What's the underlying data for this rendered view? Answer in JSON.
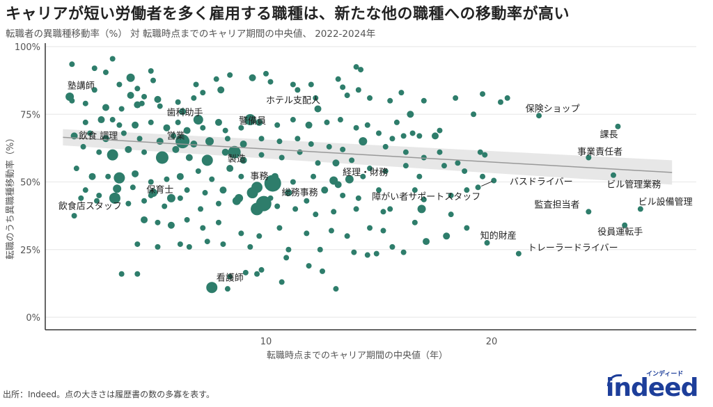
{
  "title": "キャリアが短い労働者を多く雇用する職種は、新たな他の職種への移動率が高い",
  "subtitle": "転職者の異職種移動率（%） 対 転職時点までのキャリア期間の中央値、 2022-2024年",
  "source": "出所：Indeed。点の大きさは履歴書の数の多寡を表す。",
  "logo": {
    "word": "indeed",
    "kana": "インディード",
    "color": "#1d3e9a"
  },
  "colors": {
    "point": "#2e7d6b",
    "trend": "#999999",
    "band": "#e3e3e3",
    "grid": "#e6e6e6",
    "axis": "#333333"
  },
  "chart_data": {
    "type": "scatter",
    "title": "キャリアが短い労働者を多く雇用する職種は、新たな他の職種への移動率が高い",
    "subtitle": "転職者の異職種移動率（%） 対 転職時点までのキャリア期間の中央値、 2022-2024年",
    "xlabel": "転職時点までのキャリア期間の中央値（年）",
    "ylabel": "転職のうち異職種移動率（%）",
    "x_ticks": [
      10,
      20
    ],
    "x_tick_labels": [
      "10",
      "20"
    ],
    "y_ticks": [
      0,
      25,
      50,
      75,
      100
    ],
    "y_tick_labels": [
      "0%",
      "25%",
      "50%",
      "75%",
      "100%"
    ],
    "xlim": [
      0.2,
      29.1
    ],
    "ylim": [
      -4,
      100
    ],
    "grid": true,
    "legend": "none",
    "size_encoding": "履歴書の数",
    "trendline": {
      "type": "linear",
      "x": [
        1,
        28
      ],
      "y": [
        66.5,
        53.5
      ],
      "ci_halfwidth": [
        3.0,
        4.5
      ]
    },
    "labeled_points": [
      {
        "label": "塾講師",
        "x": 1.3,
        "y": 81.5,
        "size": 6,
        "lx": 1.2,
        "ly": 84.5
      },
      {
        "label": "歯科助手",
        "x": 7.0,
        "y": 73.0,
        "size": 7,
        "lx": 5.6,
        "ly": 74.5
      },
      {
        "label": "飲食 調理",
        "x": 1.5,
        "y": 67.0,
        "size": 5,
        "lx": 1.7,
        "ly": 66.0
      },
      {
        "label": "営業",
        "x": 6.3,
        "y": 65.0,
        "size": 10,
        "lx": 5.6,
        "ly": 66.0
      },
      {
        "label": "警備員",
        "x": 9.3,
        "y": 73.0,
        "size": 8,
        "lx": 8.8,
        "ly": 71.5
      },
      {
        "label": "ホテル支配人",
        "x": 12.3,
        "y": 77.0,
        "size": 5,
        "lx": 10.0,
        "ly": 79.0
      },
      {
        "label": "製造",
        "x": 8.6,
        "y": 61.0,
        "size": 9,
        "lx": 8.3,
        "ly": 57.5
      },
      {
        "label": "事務",
        "x": 10.3,
        "y": 49.5,
        "size": 12,
        "lx": 9.3,
        "ly": 51.0
      },
      {
        "label": "総務事務",
        "x": 9.9,
        "y": 42.0,
        "size": 11,
        "lx": 10.7,
        "ly": 45.0
      },
      {
        "label": "経理・財務",
        "x": 13.0,
        "y": 50.5,
        "size": 6,
        "lx": 13.4,
        "ly": 52.5
      },
      {
        "label": "保育士",
        "x": 5.0,
        "y": 46.0,
        "size": 6,
        "lx": 4.7,
        "ly": 46.0
      },
      {
        "label": "飲食店スタッフ",
        "x": 1.5,
        "y": 37.5,
        "size": 4,
        "lx": 0.8,
        "ly": 40.0
      },
      {
        "label": "障がい者サポートスタッフ",
        "x": 17.0,
        "y": 43.5,
        "size": 4,
        "lx": 14.7,
        "ly": 43.5
      },
      {
        "label": "バスドライバー",
        "x": 20.1,
        "y": 50.5,
        "size": 4,
        "lx": 20.8,
        "ly": 49.0
      },
      {
        "label": "保険ショップ",
        "x": 22.1,
        "y": 74.5,
        "size": 4,
        "lx": 21.5,
        "ly": 76.0
      },
      {
        "label": "課長",
        "x": 25.6,
        "y": 70.5,
        "size": 4,
        "lx": 24.8,
        "ly": 66.5
      },
      {
        "label": "事業責任者",
        "x": 24.3,
        "y": 59.0,
        "size": 4,
        "lx": 23.8,
        "ly": 60.0
      },
      {
        "label": "ビル管理業務",
        "x": 25.4,
        "y": 52.5,
        "size": 4,
        "lx": 25.1,
        "ly": 48.0
      },
      {
        "label": "監査担当者",
        "x": 24.3,
        "y": 39.0,
        "size": 4,
        "lx": 21.9,
        "ly": 40.5
      },
      {
        "label": "ビル設備管理",
        "x": 26.6,
        "y": 40.0,
        "size": 4,
        "lx": 26.5,
        "ly": 41.5
      },
      {
        "label": "知的財産",
        "x": 19.8,
        "y": 27.5,
        "size": 4,
        "lx": 19.5,
        "ly": 29.0
      },
      {
        "label": "役員運転手",
        "x": 25.9,
        "y": 34.0,
        "size": 4,
        "lx": 24.7,
        "ly": 30.5
      },
      {
        "label": "トレーラードライバー",
        "x": 21.2,
        "y": 23.5,
        "size": 4,
        "lx": 21.6,
        "ly": 24.5
      },
      {
        "label": "看護師",
        "x": 7.6,
        "y": 11.0,
        "size": 8,
        "lx": 7.8,
        "ly": 13.5
      }
    ],
    "points": [
      [
        1.4,
        93.5,
        4
      ],
      [
        2.4,
        92,
        4
      ],
      [
        3.2,
        95.5,
        4
      ],
      [
        2.9,
        90.5,
        4
      ],
      [
        4.0,
        88.5,
        6
      ],
      [
        4.9,
        91,
        4
      ],
      [
        5.0,
        87.5,
        4
      ],
      [
        3.5,
        86,
        4
      ],
      [
        4.3,
        84.5,
        4
      ],
      [
        4.0,
        82,
        5
      ],
      [
        4.6,
        81.5,
        4
      ],
      [
        4.5,
        79,
        4
      ],
      [
        5.2,
        80.5,
        5
      ],
      [
        2.4,
        84,
        4
      ],
      [
        1.4,
        80,
        4
      ],
      [
        2.0,
        79,
        4
      ],
      [
        2.9,
        77.5,
        5
      ],
      [
        3.6,
        77,
        4
      ],
      [
        4.3,
        78.5,
        5
      ],
      [
        5.3,
        78,
        4
      ],
      [
        6.1,
        79.5,
        4
      ],
      [
        6.3,
        76,
        5
      ],
      [
        6.8,
        81,
        4
      ],
      [
        7.2,
        83,
        4
      ],
      [
        6.9,
        86,
        4
      ],
      [
        7.8,
        88,
        4
      ],
      [
        8.4,
        89.5,
        4
      ],
      [
        8.0,
        84,
        5
      ],
      [
        9.4,
        88.5,
        5
      ],
      [
        10.2,
        87,
        4
      ],
      [
        10.0,
        90,
        4
      ],
      [
        11.2,
        86,
        4
      ],
      [
        11.4,
        84,
        4
      ],
      [
        12.2,
        81,
        4
      ],
      [
        12.0,
        86,
        4
      ],
      [
        13.2,
        88,
        4
      ],
      [
        13.4,
        85,
        4
      ],
      [
        14.1,
        84,
        4
      ],
      [
        14.6,
        81,
        4
      ],
      [
        13.6,
        82,
        4
      ],
      [
        14.0,
        92.5,
        4
      ],
      [
        14.2,
        91.5,
        4
      ],
      [
        15.5,
        80,
        4
      ],
      [
        16.0,
        83,
        4
      ],
      [
        17.0,
        80,
        4
      ],
      [
        18.4,
        81,
        4
      ],
      [
        16.4,
        75,
        5
      ],
      [
        20.7,
        81,
        4
      ],
      [
        19.6,
        82.5,
        4
      ],
      [
        20.4,
        79.5,
        4
      ],
      [
        19.2,
        75,
        4
      ],
      [
        15.8,
        72,
        4
      ],
      [
        16.5,
        68,
        4
      ],
      [
        17.5,
        67,
        5
      ],
      [
        2.0,
        72,
        4
      ],
      [
        2.7,
        73,
        5
      ],
      [
        3.2,
        73,
        4
      ],
      [
        3.5,
        71,
        4
      ],
      [
        4.2,
        71,
        5
      ],
      [
        4.9,
        72,
        4
      ],
      [
        5.6,
        70,
        5
      ],
      [
        6.1,
        72,
        4
      ],
      [
        6.5,
        69,
        5
      ],
      [
        7.2,
        70,
        4
      ],
      [
        7.9,
        72,
        5
      ],
      [
        8.2,
        69,
        4
      ],
      [
        8.9,
        70,
        4
      ],
      [
        9.7,
        72,
        5
      ],
      [
        10.5,
        71,
        4
      ],
      [
        11.2,
        73,
        4
      ],
      [
        11.9,
        71,
        5
      ],
      [
        12.7,
        72,
        4
      ],
      [
        13.3,
        73,
        4
      ],
      [
        14.0,
        70,
        4
      ],
      [
        14.5,
        71,
        4
      ],
      [
        15.0,
        68,
        4
      ],
      [
        15.6,
        66,
        4
      ],
      [
        16.1,
        67,
        4
      ],
      [
        16.8,
        67,
        4
      ],
      [
        17.7,
        69,
        4
      ],
      [
        2.2,
        68,
        4
      ],
      [
        2.9,
        66,
        5
      ],
      [
        3.7,
        68,
        4
      ],
      [
        4.4,
        66,
        4
      ],
      [
        5.3,
        65,
        5
      ],
      [
        5.9,
        67,
        4
      ],
      [
        6.8,
        64,
        5
      ],
      [
        7.5,
        65,
        6
      ],
      [
        8.3,
        66,
        4
      ],
      [
        9.0,
        64,
        5
      ],
      [
        9.8,
        66,
        4
      ],
      [
        10.6,
        65,
        4
      ],
      [
        11.4,
        66,
        4
      ],
      [
        12.0,
        64,
        4
      ],
      [
        12.8,
        63,
        4
      ],
      [
        13.4,
        62,
        4
      ],
      [
        14.3,
        65,
        6
      ],
      [
        15.3,
        63,
        4
      ],
      [
        16.2,
        61,
        4
      ],
      [
        17.0,
        59,
        4
      ],
      [
        17.7,
        61,
        4
      ],
      [
        18.5,
        57,
        4
      ],
      [
        19.5,
        61,
        4
      ],
      [
        19.7,
        60,
        4
      ],
      [
        1.9,
        63,
        4
      ],
      [
        2.6,
        61,
        4
      ],
      [
        3.2,
        60,
        8
      ],
      [
        3.9,
        62,
        5
      ],
      [
        4.6,
        61,
        4
      ],
      [
        5.4,
        59,
        9
      ],
      [
        6.0,
        62,
        5
      ],
      [
        6.6,
        59,
        5
      ],
      [
        7.4,
        58,
        8
      ],
      [
        8.2,
        61,
        5
      ],
      [
        9.0,
        58,
        5
      ],
      [
        9.8,
        60,
        4
      ],
      [
        10.7,
        59,
        4
      ],
      [
        11.5,
        61,
        4
      ],
      [
        12.3,
        57,
        4
      ],
      [
        13.1,
        57,
        5
      ],
      [
        13.8,
        58,
        4
      ],
      [
        14.6,
        55,
        4
      ],
      [
        15.3,
        54,
        4
      ],
      [
        16.2,
        56,
        4
      ],
      [
        16.8,
        52,
        4
      ],
      [
        17.9,
        56,
        4
      ],
      [
        18.8,
        54,
        4
      ],
      [
        19.6,
        52,
        4
      ],
      [
        1.6,
        55,
        4
      ],
      [
        2.3,
        52,
        5
      ],
      [
        3.0,
        52,
        4
      ],
      [
        3.5,
        51.5,
        8
      ],
      [
        4.2,
        53,
        5
      ],
      [
        4.9,
        50,
        4
      ],
      [
        5.6,
        51,
        4
      ],
      [
        6.2,
        52,
        5
      ],
      [
        7.0,
        54,
        4
      ],
      [
        7.6,
        51,
        4
      ],
      [
        8.4,
        55,
        5
      ],
      [
        8.9,
        52,
        4
      ],
      [
        9.6,
        48,
        8
      ],
      [
        10.4,
        52,
        5
      ],
      [
        11.2,
        50,
        4
      ],
      [
        12.1,
        52,
        4
      ],
      [
        13.2,
        49,
        5
      ],
      [
        13.7,
        51,
        6
      ],
      [
        14.3,
        52,
        4
      ],
      [
        15.0,
        47,
        4
      ],
      [
        16.6,
        47,
        4
      ],
      [
        18.2,
        45,
        4
      ],
      [
        18.9,
        47,
        4
      ],
      [
        19.4,
        48,
        4
      ],
      [
        2.0,
        47,
        4
      ],
      [
        2.6,
        45,
        4
      ],
      [
        3.4,
        47.5,
        6
      ],
      [
        4.1,
        48,
        4
      ],
      [
        4.9,
        45,
        4
      ],
      [
        5.8,
        44,
        6
      ],
      [
        6.5,
        47,
        4
      ],
      [
        7.3,
        46,
        4
      ],
      [
        8.1,
        47,
        5
      ],
      [
        8.8,
        44,
        6
      ],
      [
        9.4,
        46,
        8
      ],
      [
        10.2,
        44,
        4
      ],
      [
        11.0,
        46,
        5
      ],
      [
        11.8,
        43,
        4
      ],
      [
        12.6,
        47,
        5
      ],
      [
        13.4,
        45,
        4
      ],
      [
        14.1,
        44,
        4
      ],
      [
        1.8,
        44,
        4
      ],
      [
        2.5,
        43,
        4
      ],
      [
        3.3,
        44,
        8
      ],
      [
        3.9,
        42,
        4
      ],
      [
        4.6,
        43,
        4
      ],
      [
        5.5,
        41,
        4
      ],
      [
        6.2,
        44,
        4
      ],
      [
        7.1,
        40,
        4
      ],
      [
        7.9,
        42,
        4
      ],
      [
        8.7,
        43,
        6
      ],
      [
        9.6,
        40,
        9
      ],
      [
        10.5,
        41,
        4
      ],
      [
        11.3,
        40,
        4
      ],
      [
        12.2,
        38,
        4
      ],
      [
        13.0,
        39,
        4
      ],
      [
        14.0,
        40,
        4
      ],
      [
        15.2,
        39,
        4
      ],
      [
        15.5,
        40,
        4
      ],
      [
        16.9,
        40,
        6
      ],
      [
        18.2,
        38,
        4
      ],
      [
        18.9,
        33,
        4
      ],
      [
        4.6,
        36,
        5
      ],
      [
        5.2,
        35,
        4
      ],
      [
        5.8,
        34,
        5
      ],
      [
        6.5,
        36,
        4
      ],
      [
        7.2,
        33,
        4
      ],
      [
        7.9,
        35,
        4
      ],
      [
        8.9,
        31,
        4
      ],
      [
        9.7,
        30,
        4
      ],
      [
        10.6,
        33,
        4
      ],
      [
        11.8,
        31,
        4
      ],
      [
        12.9,
        32,
        4
      ],
      [
        13.6,
        30,
        4
      ],
      [
        14.6,
        33,
        4
      ],
      [
        15.2,
        32,
        4
      ],
      [
        16.6,
        35,
        4
      ],
      [
        18.0,
        30,
        5
      ],
      [
        4.3,
        27,
        4
      ],
      [
        5.2,
        26,
        4
      ],
      [
        6.2,
        27,
        4
      ],
      [
        6.6,
        26,
        4
      ],
      [
        7.4,
        28,
        4
      ],
      [
        8.1,
        27,
        4
      ],
      [
        9.3,
        26,
        4
      ],
      [
        11.0,
        25,
        4
      ],
      [
        12.4,
        25,
        4
      ],
      [
        13.9,
        24,
        4
      ],
      [
        14.9,
        23.5,
        4
      ],
      [
        17.1,
        28,
        5
      ],
      [
        3.6,
        16,
        4
      ],
      [
        4.3,
        16,
        4
      ],
      [
        8.4,
        15,
        4
      ],
      [
        9.6,
        16,
        4
      ],
      [
        9.8,
        17.5,
        4
      ],
      [
        9.1,
        16.5,
        4
      ],
      [
        10.7,
        13,
        4
      ],
      [
        13.1,
        10.5,
        4
      ],
      [
        8.3,
        10.5,
        4
      ],
      [
        11.9,
        19,
        4
      ],
      [
        10.9,
        22,
        4
      ],
      [
        12.5,
        17,
        4
      ],
      [
        14.5,
        23,
        4
      ],
      [
        15.6,
        26,
        4
      ],
      [
        16.1,
        24,
        4
      ]
    ]
  }
}
